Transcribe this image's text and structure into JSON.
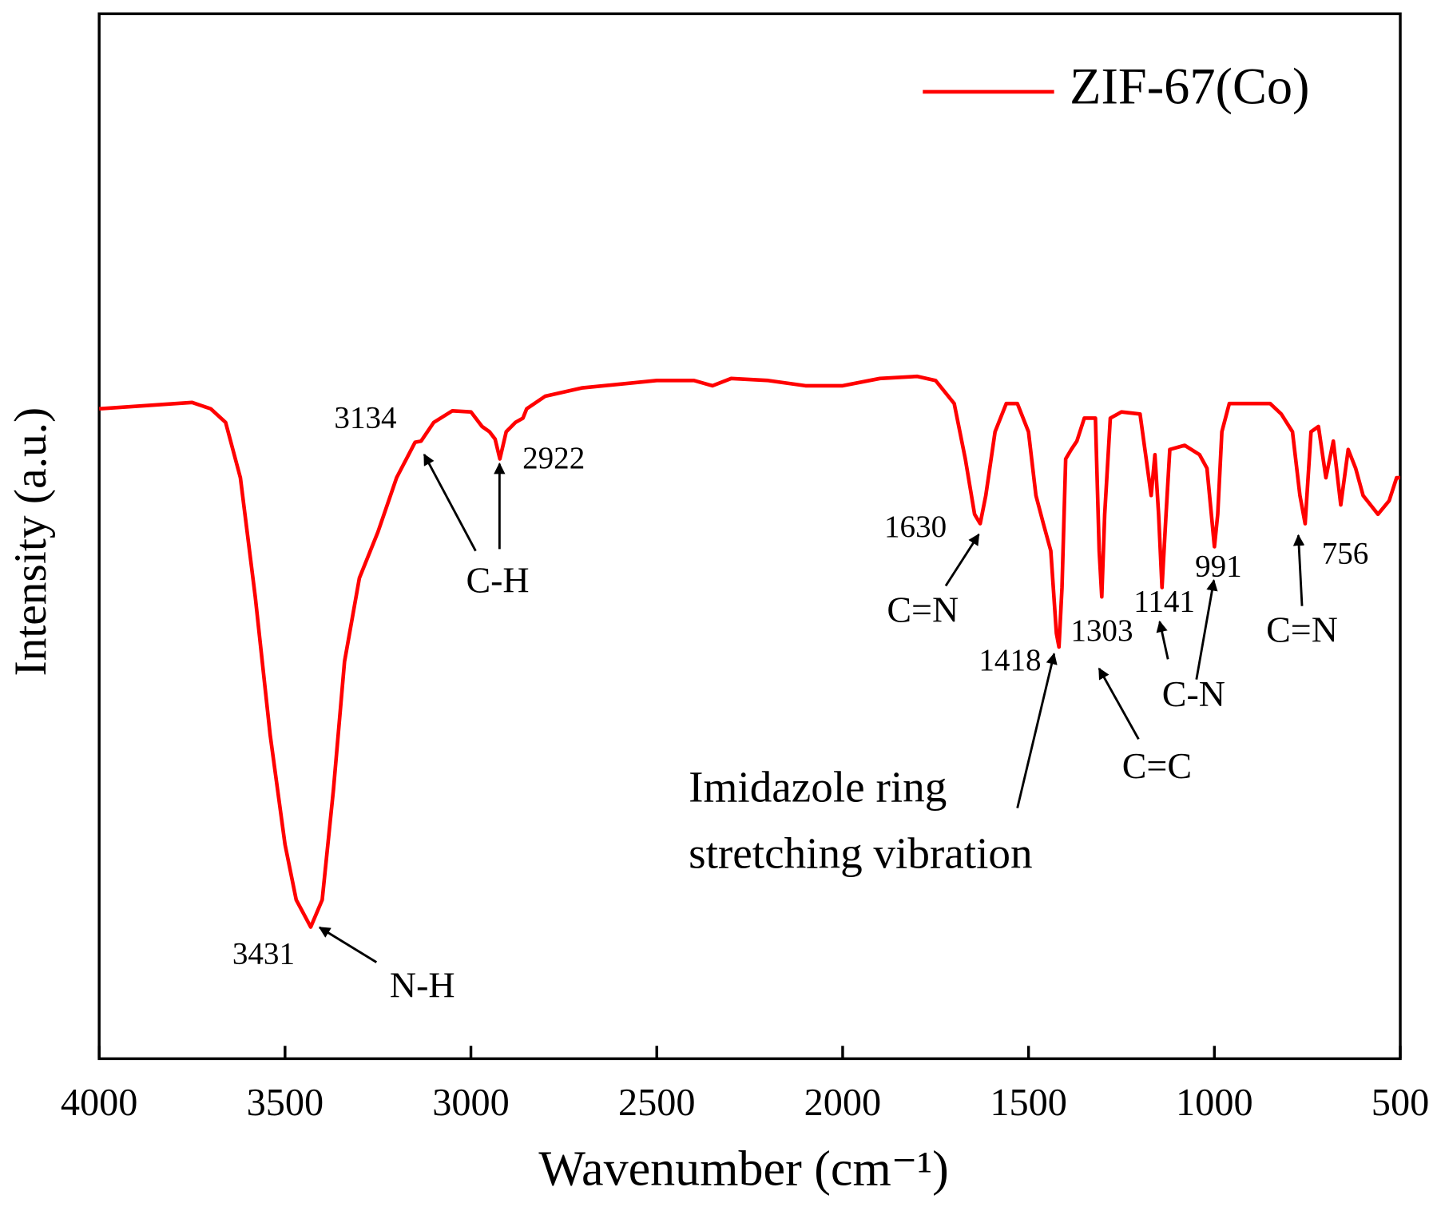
{
  "chart_data": {
    "type": "line",
    "xlabel": "Wavenumber (cm⁻¹)",
    "ylabel": "Intensity (a.u.)",
    "xlim": [
      4000,
      500
    ],
    "xticks": [
      4000,
      3500,
      3000,
      2500,
      2000,
      1500,
      1000,
      500
    ],
    "ylim": [
      0,
      100
    ],
    "legend": "upper right",
    "grid": false,
    "x": [
      4000,
      3750,
      3700,
      3660,
      3620,
      3580,
      3540,
      3500,
      3470,
      3431,
      3400,
      3370,
      3340,
      3300,
      3250,
      3200,
      3150,
      3134,
      3100,
      3050,
      3000,
      2970,
      2950,
      2935,
      2922,
      2905,
      2880,
      2860,
      2850,
      2800,
      2700,
      2500,
      2400,
      2350,
      2300,
      2200,
      2100,
      2000,
      1900,
      1800,
      1750,
      1700,
      1670,
      1645,
      1630,
      1615,
      1590,
      1560,
      1530,
      1500,
      1480,
      1460,
      1440,
      1425,
      1418,
      1410,
      1400,
      1385,
      1370,
      1350,
      1320,
      1310,
      1303,
      1295,
      1280,
      1250,
      1200,
      1180,
      1170,
      1160,
      1150,
      1141,
      1130,
      1120,
      1080,
      1040,
      1020,
      1000,
      991,
      980,
      960,
      900,
      850,
      820,
      790,
      770,
      756,
      740,
      720,
      700,
      680,
      660,
      640,
      620,
      600,
      560,
      530,
      510,
      500
    ],
    "series": [
      {
        "name": "ZIF-67(Co)",
        "color": "#ff0000",
        "values": [
          62.2,
          62.8,
          62.2,
          60.9,
          55.6,
          44.2,
          31.0,
          20.5,
          15.2,
          12.6,
          15.2,
          25.7,
          38.0,
          46.0,
          50.4,
          55.6,
          59.0,
          59.1,
          60.9,
          62.0,
          61.9,
          60.5,
          60.0,
          59.3,
          57.4,
          60.0,
          60.9,
          61.3,
          62.2,
          63.4,
          64.2,
          64.9,
          64.9,
          64.4,
          65.1,
          64.9,
          64.4,
          64.4,
          65.1,
          65.3,
          64.9,
          62.7,
          57.4,
          52.1,
          51.2,
          53.9,
          60.0,
          62.7,
          62.7,
          60.0,
          53.9,
          51.2,
          48.6,
          40.7,
          39.4,
          45.1,
          57.4,
          58.3,
          59.1,
          61.3,
          61.3,
          48.6,
          44.2,
          52.1,
          61.3,
          61.9,
          61.7,
          56.5,
          53.9,
          57.8,
          52.1,
          45.1,
          52.1,
          58.3,
          58.7,
          57.8,
          56.5,
          49.0,
          52.1,
          60.0,
          62.7,
          62.7,
          62.7,
          61.7,
          60.0,
          53.9,
          51.2,
          60.0,
          60.5,
          55.6,
          59.1,
          53.0,
          58.3,
          56.5,
          53.9,
          52.1,
          53.4,
          55.6,
          55.6
        ]
      }
    ],
    "annotations": [
      "3134",
      "2922",
      "1630",
      "1418",
      "1303",
      "1141",
      "991",
      "756",
      "C-H",
      "N-H",
      "3431",
      "C=N",
      "C=N",
      "C-N",
      "C=C",
      "Imidazole ring",
      "stretching vibration"
    ]
  }
}
